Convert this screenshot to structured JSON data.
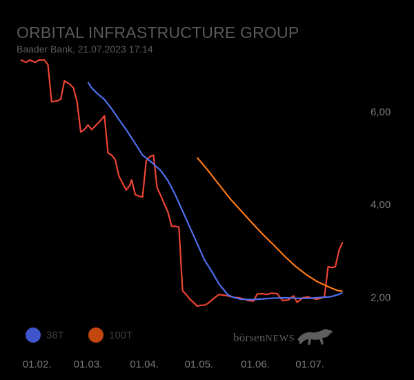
{
  "header": {
    "title": "ORBITAL INFRASTRUCTURE GROUP",
    "subtitle": "Baader Bank, 21.07.2023 17:14"
  },
  "legend": [
    {
      "label": "38T",
      "color": "#3f55cc"
    },
    {
      "label": "100T",
      "color": "#c2470f"
    }
  ],
  "watermark": {
    "brand_lower": "börsen",
    "brand_caps": "NEWS",
    "icon": "bull-icon"
  },
  "colors": {
    "price": "#ee4433",
    "ma38": "#5070f0",
    "ma100": "#ff7a14",
    "background": "#000000",
    "text": "#5a5a5a"
  },
  "chart_data": {
    "type": "line",
    "x_ticks": [
      "01.02.",
      "01.03.",
      "01.04.",
      "01.05.",
      "01.06.",
      "01.07."
    ],
    "y_ticks": [
      {
        "value": 2,
        "label": "2,00"
      },
      {
        "value": 4,
        "label": "4,00"
      },
      {
        "value": 6,
        "label": "6,00"
      }
    ],
    "ylim": [
      1.4,
      7.35
    ],
    "xlim": [
      "2023-01-23",
      "2023-07-26"
    ],
    "grid": false,
    "series": [
      {
        "id": "price",
        "color": "#ee4433",
        "points": [
          [
            "2023-01-23",
            7.1
          ],
          [
            "2023-01-26",
            7.05
          ],
          [
            "2023-01-28",
            7.1
          ],
          [
            "2023-01-31",
            7.05
          ],
          [
            "2023-02-02",
            7.1
          ],
          [
            "2023-02-05",
            7.1
          ],
          [
            "2023-02-07",
            7.0
          ],
          [
            "2023-02-09",
            6.2
          ],
          [
            "2023-02-12",
            6.22
          ],
          [
            "2023-02-14",
            6.25
          ],
          [
            "2023-02-16",
            6.65
          ],
          [
            "2023-02-19",
            6.58
          ],
          [
            "2023-02-21",
            6.5
          ],
          [
            "2023-02-23",
            6.2
          ],
          [
            "2023-02-25",
            5.55
          ],
          [
            "2023-02-27",
            5.6
          ],
          [
            "2023-03-01",
            5.7
          ],
          [
            "2023-03-03",
            5.6
          ],
          [
            "2023-03-06",
            5.72
          ],
          [
            "2023-03-08",
            5.8
          ],
          [
            "2023-03-10",
            5.9
          ],
          [
            "2023-03-12",
            5.1
          ],
          [
            "2023-03-14",
            5.05
          ],
          [
            "2023-03-16",
            4.95
          ],
          [
            "2023-03-18",
            4.6
          ],
          [
            "2023-03-20",
            4.45
          ],
          [
            "2023-03-22",
            4.3
          ],
          [
            "2023-03-24",
            4.4
          ],
          [
            "2023-03-25",
            4.52
          ],
          [
            "2023-03-27",
            4.2
          ],
          [
            "2023-03-29",
            4.17
          ],
          [
            "2023-03-31",
            4.15
          ],
          [
            "2023-04-02",
            4.93
          ],
          [
            "2023-04-04",
            5.02
          ],
          [
            "2023-04-06",
            5.05
          ],
          [
            "2023-04-08",
            4.35
          ],
          [
            "2023-04-10",
            4.18
          ],
          [
            "2023-04-12",
            4.0
          ],
          [
            "2023-04-14",
            3.82
          ],
          [
            "2023-04-16",
            3.52
          ],
          [
            "2023-04-18",
            3.52
          ],
          [
            "2023-04-20",
            3.5
          ],
          [
            "2023-04-22",
            2.13
          ],
          [
            "2023-04-24",
            2.05
          ],
          [
            "2023-04-26",
            1.95
          ],
          [
            "2023-04-28",
            1.88
          ],
          [
            "2023-04-30",
            1.8
          ],
          [
            "2023-05-02",
            1.82
          ],
          [
            "2023-05-04",
            1.82
          ],
          [
            "2023-05-06",
            1.86
          ],
          [
            "2023-05-08",
            1.93
          ],
          [
            "2023-05-10",
            1.99
          ],
          [
            "2023-05-12",
            2.05
          ],
          [
            "2023-05-14",
            2.04
          ],
          [
            "2023-05-17",
            2.02
          ],
          [
            "2023-05-20",
            1.99
          ],
          [
            "2023-05-23",
            1.98
          ],
          [
            "2023-05-26",
            1.95
          ],
          [
            "2023-05-28",
            1.92
          ],
          [
            "2023-05-31",
            1.91
          ],
          [
            "2023-06-02",
            2.06
          ],
          [
            "2023-06-05",
            2.07
          ],
          [
            "2023-06-07",
            2.05
          ],
          [
            "2023-06-10",
            2.08
          ],
          [
            "2023-06-13",
            2.07
          ],
          [
            "2023-06-16",
            1.92
          ],
          [
            "2023-06-19",
            1.93
          ],
          [
            "2023-06-22",
            2.02
          ],
          [
            "2023-06-24",
            1.88
          ],
          [
            "2023-06-27",
            1.98
          ],
          [
            "2023-06-30",
            2.0
          ],
          [
            "2023-07-02",
            1.97
          ],
          [
            "2023-07-05",
            1.95
          ],
          [
            "2023-07-07",
            1.97
          ],
          [
            "2023-07-09",
            2.0
          ],
          [
            "2023-07-11",
            2.65
          ],
          [
            "2023-07-13",
            2.63
          ],
          [
            "2023-07-15",
            2.65
          ],
          [
            "2023-07-17",
            3.0
          ],
          [
            "2023-07-19",
            3.18
          ]
        ]
      },
      {
        "id": "ma38",
        "name": "38T",
        "color": "#5070f0",
        "points": [
          [
            "2023-03-01",
            6.62
          ],
          [
            "2023-03-03",
            6.5
          ],
          [
            "2023-03-06",
            6.38
          ],
          [
            "2023-03-10",
            6.25
          ],
          [
            "2023-03-14",
            6.05
          ],
          [
            "2023-03-18",
            5.82
          ],
          [
            "2023-03-22",
            5.6
          ],
          [
            "2023-03-27",
            5.3
          ],
          [
            "2023-03-31",
            5.05
          ],
          [
            "2023-04-04",
            4.93
          ],
          [
            "2023-04-10",
            4.72
          ],
          [
            "2023-04-14",
            4.5
          ],
          [
            "2023-04-18",
            4.2
          ],
          [
            "2023-04-22",
            3.85
          ],
          [
            "2023-04-26",
            3.5
          ],
          [
            "2023-04-30",
            3.15
          ],
          [
            "2023-05-04",
            2.8
          ],
          [
            "2023-05-08",
            2.55
          ],
          [
            "2023-05-12",
            2.28
          ],
          [
            "2023-05-17",
            2.04
          ],
          [
            "2023-05-20",
            1.99
          ],
          [
            "2023-05-24",
            1.95
          ],
          [
            "2023-05-29",
            1.94
          ],
          [
            "2023-06-03",
            1.95
          ],
          [
            "2023-06-10",
            1.97
          ],
          [
            "2023-06-17",
            1.98
          ],
          [
            "2023-06-24",
            1.97
          ],
          [
            "2023-07-01",
            1.97
          ],
          [
            "2023-07-08",
            1.99
          ],
          [
            "2023-07-12",
            2.0
          ],
          [
            "2023-07-16",
            2.04
          ],
          [
            "2023-07-19",
            2.09
          ]
        ]
      },
      {
        "id": "ma100",
        "name": "100T",
        "color": "#ff7a14",
        "points": [
          [
            "2023-04-30",
            5.0
          ],
          [
            "2023-05-06",
            4.72
          ],
          [
            "2023-05-12",
            4.42
          ],
          [
            "2023-05-18",
            4.12
          ],
          [
            "2023-05-24",
            3.86
          ],
          [
            "2023-05-30",
            3.6
          ],
          [
            "2023-06-05",
            3.35
          ],
          [
            "2023-06-11",
            3.12
          ],
          [
            "2023-06-17",
            2.88
          ],
          [
            "2023-06-23",
            2.66
          ],
          [
            "2023-06-29",
            2.48
          ],
          [
            "2023-07-05",
            2.33
          ],
          [
            "2023-07-11",
            2.22
          ],
          [
            "2023-07-16",
            2.14
          ],
          [
            "2023-07-19",
            2.12
          ]
        ]
      }
    ]
  }
}
